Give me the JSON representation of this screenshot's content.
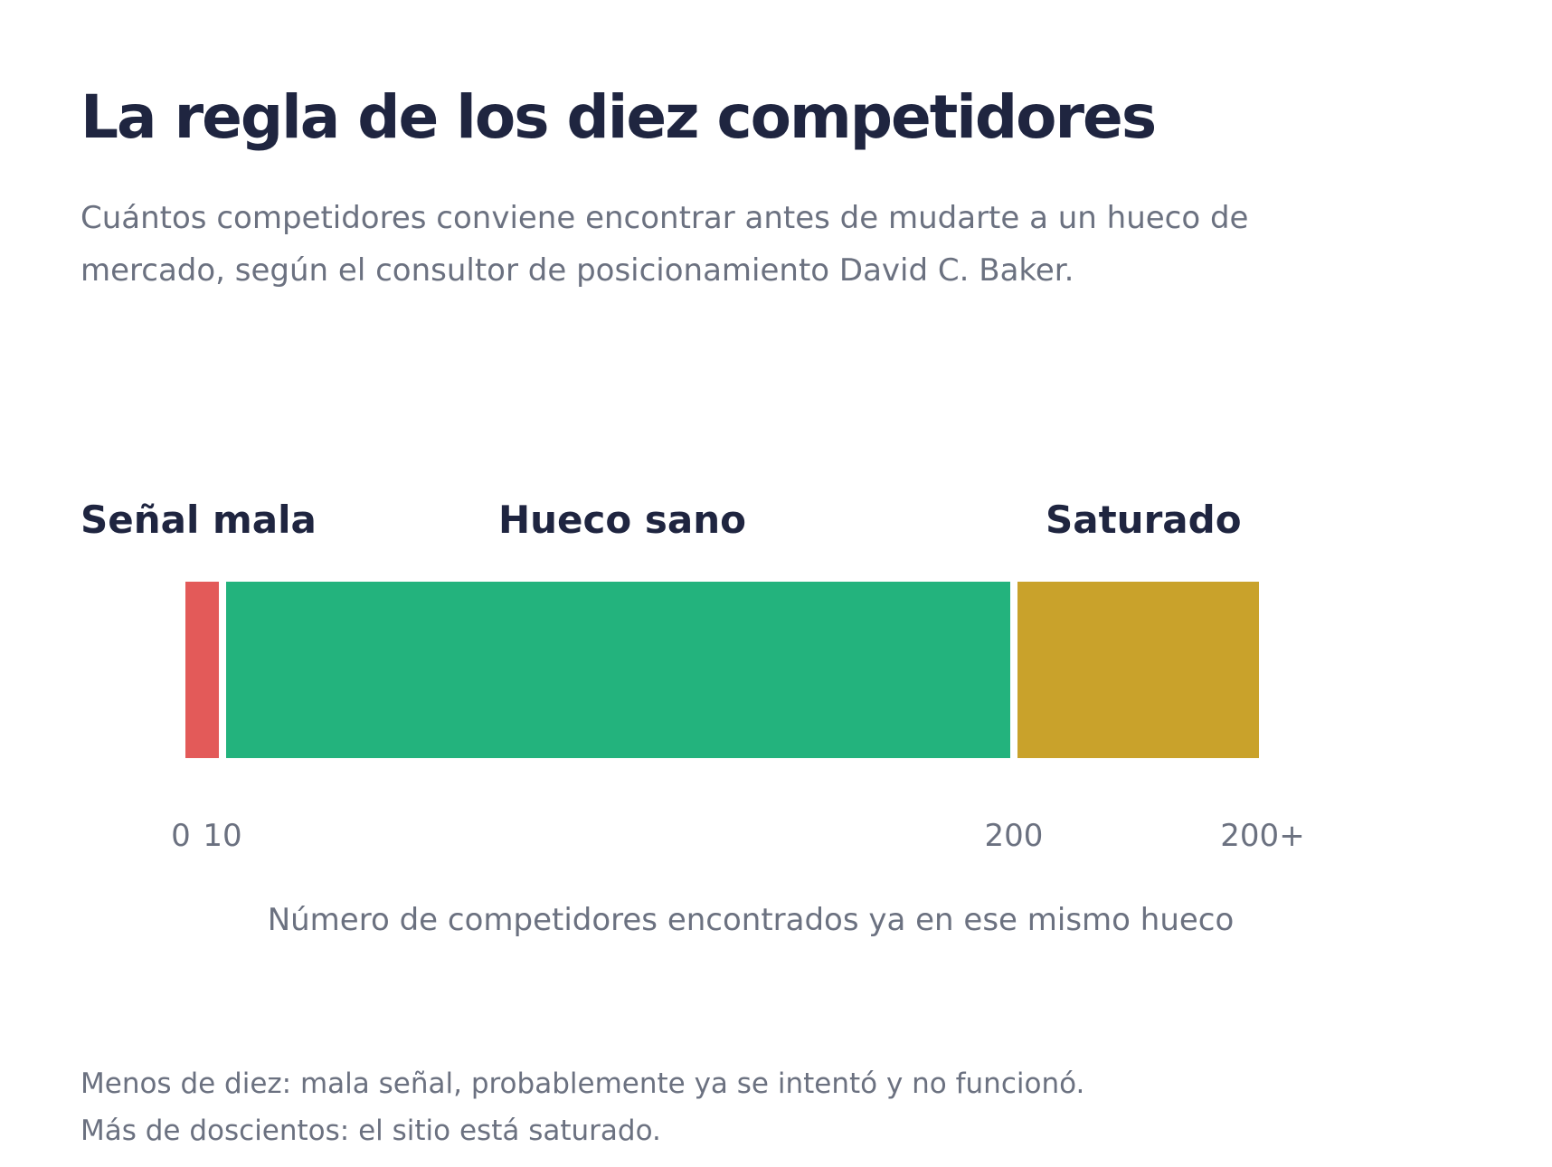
{
  "title": "La regla de los diez competidores",
  "subtitle": "Cuántos competidores conviene encontrar antes de mudarte a un hueco de mercado, según el consultor de posicionamiento David C. Baker.",
  "notes": [
    "Menos de diez: mala señal, probablemente ya se intentó y no funcionó.",
    "Más de doscientos: el sitio está saturado."
  ],
  "chart_data": {
    "type": "bar",
    "orientation": "horizontal-segmented",
    "xlabel": "Número de competidores encontrados ya en ese mismo hueco",
    "ticks": [
      "0",
      "10",
      "200",
      "200+"
    ],
    "segments": [
      {
        "label": "Señal mala",
        "from": "0",
        "to": "10",
        "color": "#e35a59"
      },
      {
        "label": "Hueco sano",
        "from": "10",
        "to": "200",
        "color": "#23b37d"
      },
      {
        "label": "Saturado",
        "from": "200",
        "to": "200+",
        "color": "#c9a22b"
      }
    ]
  }
}
